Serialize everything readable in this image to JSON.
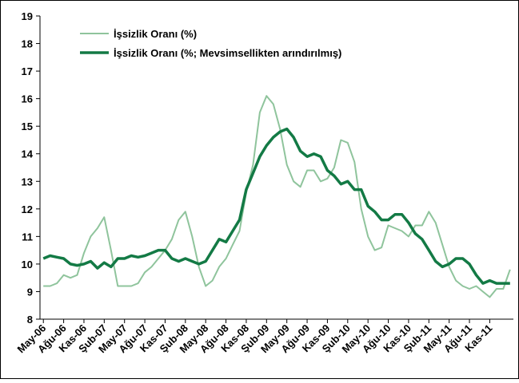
{
  "chart_data": {
    "type": "line",
    "categories": [
      "May-06",
      null,
      null,
      "Ağu-06",
      null,
      null,
      "Kas-06",
      null,
      null,
      "Şub-07",
      null,
      null,
      "May-07",
      null,
      null,
      "Ağu-07",
      null,
      null,
      "Kas-07",
      null,
      null,
      "Şub-08",
      null,
      null,
      "May-08",
      null,
      null,
      "Ağu-08",
      null,
      null,
      "Kas-08",
      null,
      null,
      "Şub-09",
      null,
      null,
      "May-09",
      null,
      null,
      "Ağu-09",
      null,
      null,
      "Kas-09",
      null,
      null,
      "Şub-10",
      null,
      null,
      "May-10",
      null,
      null,
      "Ağu-10",
      null,
      null,
      "Kas-10",
      null,
      null,
      "Şub-11",
      null,
      null,
      "May-11",
      null,
      null,
      "Ağu-11",
      null,
      null,
      "Kas-11",
      null,
      null,
      null
    ],
    "series": [
      {
        "name": "İşsizlik Oranı (%)",
        "color": "#8fc49c",
        "width": 2,
        "values": [
          9.2,
          9.2,
          9.3,
          9.6,
          9.5,
          9.6,
          10.4,
          11.0,
          11.3,
          11.7,
          10.5,
          9.2,
          9.2,
          9.2,
          9.3,
          9.7,
          9.9,
          10.2,
          10.5,
          10.9,
          11.6,
          11.9,
          11.0,
          9.9,
          9.2,
          9.4,
          9.9,
          10.2,
          10.7,
          11.2,
          12.6,
          13.6,
          15.5,
          16.1,
          15.8,
          14.9,
          13.6,
          13.0,
          12.8,
          13.4,
          13.4,
          13.0,
          13.1,
          13.5,
          14.5,
          14.4,
          13.7,
          12.0,
          11.0,
          10.5,
          10.6,
          11.4,
          11.3,
          11.2,
          11.0,
          11.4,
          11.4,
          11.9,
          11.5,
          10.7,
          9.9,
          9.4,
          9.2,
          9.1,
          9.2,
          9.0,
          8.8,
          9.1,
          9.1,
          9.8
        ]
      },
      {
        "name": "İşsizlik Oranı (%; Mevsimsellikten arındırılmış)",
        "color": "#137a45",
        "width": 3.5,
        "values": [
          10.2,
          10.3,
          10.25,
          10.2,
          10.0,
          9.95,
          10.0,
          10.1,
          9.85,
          10.05,
          9.9,
          10.2,
          10.2,
          10.3,
          10.25,
          10.3,
          10.4,
          10.5,
          10.5,
          10.2,
          10.1,
          10.2,
          10.1,
          10.0,
          10.1,
          10.5,
          10.9,
          10.8,
          11.2,
          11.6,
          12.7,
          13.3,
          13.9,
          14.3,
          14.6,
          14.8,
          14.9,
          14.6,
          14.1,
          13.9,
          14.0,
          13.9,
          13.4,
          13.2,
          12.9,
          13.0,
          12.7,
          12.7,
          12.1,
          11.9,
          11.6,
          11.6,
          11.8,
          11.8,
          11.5,
          11.1,
          10.9,
          10.5,
          10.1,
          9.9,
          10.0,
          10.2,
          10.2,
          10.0,
          9.6,
          9.3,
          9.4,
          9.3,
          9.3,
          9.3
        ]
      }
    ],
    "ylim": [
      8,
      19
    ],
    "yticks": [
      8,
      9,
      10,
      11,
      12,
      13,
      14,
      15,
      16,
      17,
      18,
      19
    ],
    "legend": "top-left"
  }
}
